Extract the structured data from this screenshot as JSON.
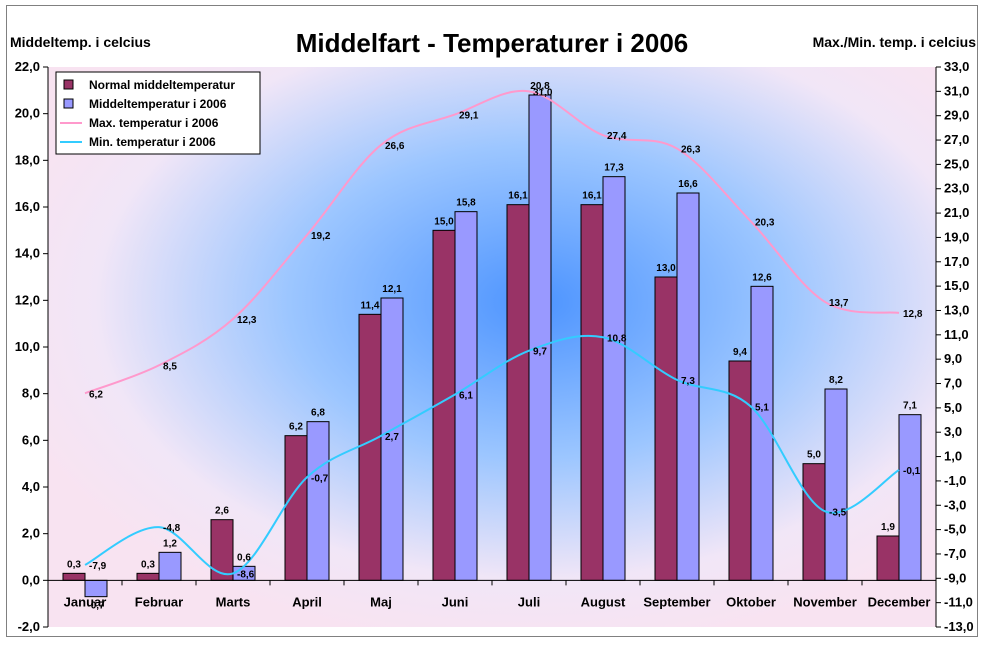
{
  "chart_data": {
    "type": "bar",
    "title": "Middelfart - Temperaturer i 2006",
    "ylabel_left": "Middeltemp. i celcius",
    "ylabel_right": "Max./Min. temp. i celcius",
    "categories": [
      "Januar",
      "Februar",
      "Marts",
      "April",
      "Maj",
      "Juni",
      "Juli",
      "August",
      "September",
      "Oktober",
      "November",
      "December"
    ],
    "left_axis": {
      "ylim": [
        -2,
        22
      ],
      "ticks": [
        "-2,0",
        "0,0",
        "2,0",
        "4,0",
        "6,0",
        "8,0",
        "10,0",
        "12,0",
        "14,0",
        "16,0",
        "18,0",
        "20,0",
        "22,0"
      ]
    },
    "right_axis": {
      "ylim": [
        -13,
        33
      ],
      "ticks": [
        "-13,0",
        "-11,0",
        "-9,0",
        "-7,0",
        "-5,0",
        "-3,0",
        "-1,0",
        "1,0",
        "3,0",
        "5,0",
        "7,0",
        "9,0",
        "11,0",
        "13,0",
        "15,0",
        "17,0",
        "19,0",
        "21,0",
        "23,0",
        "25,0",
        "27,0",
        "29,0",
        "31,0",
        "33,0"
      ]
    },
    "series": [
      {
        "name": "Normal middeltemperatur",
        "kind": "bar",
        "axis": "left",
        "color": "#993366",
        "values": [
          0.3,
          0.3,
          2.6,
          6.2,
          11.4,
          15.0,
          16.1,
          16.1,
          13.0,
          9.4,
          5.0,
          1.9
        ],
        "labels": [
          "0,3",
          "0,3",
          "2,6",
          "6,2",
          "11,4",
          "15,0",
          "16,1",
          "16,1",
          "13,0",
          "9,4",
          "5,0",
          "1,9"
        ]
      },
      {
        "name": "Middeltemperatur i 2006",
        "kind": "bar",
        "axis": "left",
        "color": "#9999ff",
        "values": [
          -0.7,
          1.2,
          0.6,
          6.8,
          12.1,
          15.8,
          20.8,
          17.3,
          16.6,
          12.6,
          8.2,
          7.1
        ],
        "labels": [
          "-0,7",
          "1,2",
          "0,6",
          "6,8",
          "12,1",
          "15,8",
          "20,8",
          "17,3",
          "16,6",
          "12,6",
          "8,2",
          "7,1"
        ]
      },
      {
        "name": "Max. temperatur i 2006",
        "kind": "line",
        "axis": "right",
        "color": "#ff99cc",
        "values": [
          6.2,
          8.5,
          12.3,
          19.2,
          26.6,
          29.1,
          31.0,
          27.4,
          26.3,
          20.3,
          13.7,
          12.8
        ],
        "labels": [
          "6,2",
          "8,5",
          "12,3",
          "19,2",
          "26,6",
          "29,1",
          "31,0",
          "27,4",
          "26,3",
          "20,3",
          "13,7",
          "12,8"
        ]
      },
      {
        "name": "Min. temperatur i 2006",
        "kind": "line",
        "axis": "right",
        "color": "#33ccff",
        "values": [
          -7.9,
          -4.8,
          -8.6,
          -0.7,
          2.7,
          6.1,
          9.7,
          10.8,
          7.3,
          5.1,
          -3.5,
          -0.1
        ],
        "labels": [
          "-7,9",
          "-4,8",
          "-8,6",
          "-0,7",
          "2,7",
          "6,1",
          "9,7",
          "10,8",
          "7,3",
          "5,1",
          "-3,5",
          "-0,1"
        ]
      }
    ],
    "legend_placement": "top-left",
    "grid": false
  }
}
